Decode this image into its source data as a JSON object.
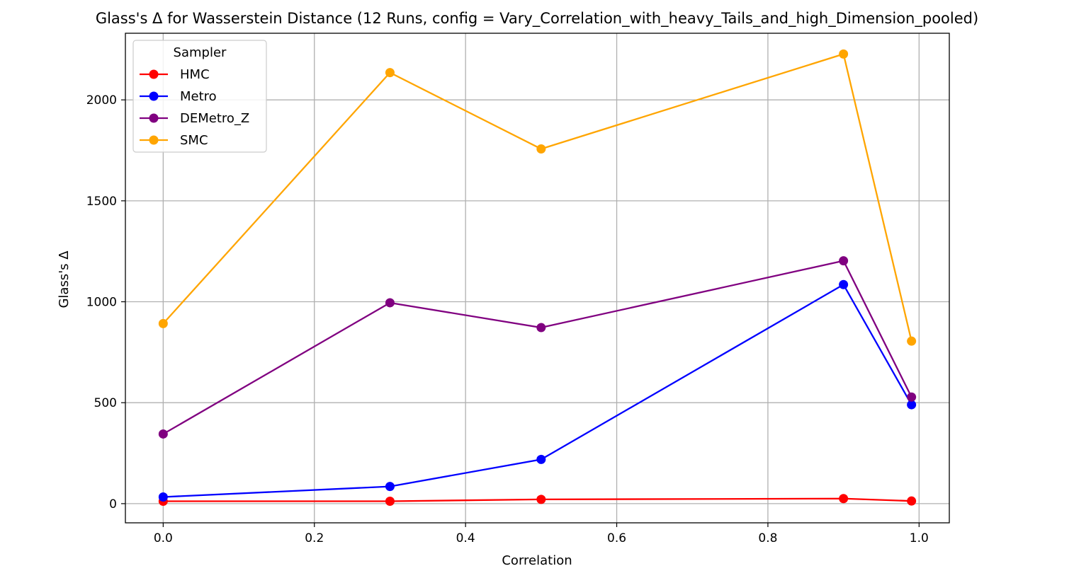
{
  "chart_data": {
    "type": "line",
    "title": "Glass's Δ for Wasserstein Distance (12 Runs, config = Vary_Correlation_with_heavy_Tails_and_high_Dimension_pooled)",
    "xlabel": "Correlation",
    "ylabel": "Glass's Δ",
    "xlim": [
      -0.05,
      1.04
    ],
    "ylim": [
      -95,
      2330
    ],
    "xticks": [
      0.0,
      0.2,
      0.4,
      0.6,
      0.8,
      1.0
    ],
    "xtick_labels": [
      "0.0",
      "0.2",
      "0.4",
      "0.6",
      "0.8",
      "1.0"
    ],
    "yticks": [
      0,
      500,
      1000,
      1500,
      2000
    ],
    "ytick_labels": [
      "0",
      "500",
      "1000",
      "1500",
      "2000"
    ],
    "grid": true,
    "legend": {
      "title": "Sampler",
      "position": "top-left"
    },
    "x": [
      0.0,
      0.3,
      0.5,
      0.9,
      0.99
    ],
    "series": [
      {
        "name": "HMC",
        "color": "#ff0000",
        "values": [
          12,
          12,
          21,
          25,
          13
        ]
      },
      {
        "name": "Metro",
        "color": "#0000ff",
        "values": [
          33,
          85,
          219,
          1085,
          490
        ]
      },
      {
        "name": "DEMetro_Z",
        "color": "#800080",
        "values": [
          345,
          995,
          872,
          1203,
          528
        ]
      },
      {
        "name": "SMC",
        "color": "#ffa500",
        "values": [
          892,
          2135,
          1757,
          2227,
          805
        ]
      }
    ]
  }
}
